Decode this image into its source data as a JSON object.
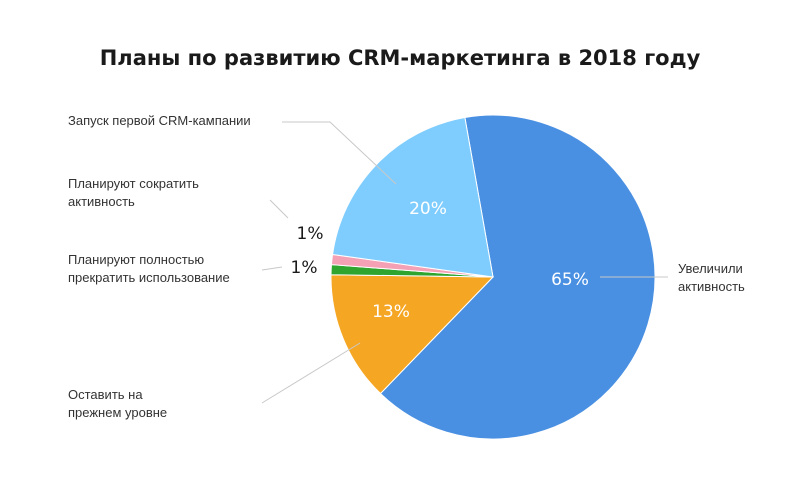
{
  "chart_data": {
    "type": "pie",
    "title": "Планы по развитию CRM-маркетинга в 2018 году",
    "slices": [
      {
        "lines": [
          "Увеличили",
          "активность"
        ],
        "value": 65,
        "label": "65%",
        "color": "#4a90e2"
      },
      {
        "lines": [
          "Оставить на",
          "прежнем уровне"
        ],
        "value": 13,
        "label": "13%",
        "color": "#f5a623"
      },
      {
        "lines": [
          "Планируют полностью",
          "прекратить использование"
        ],
        "value": 1,
        "label": "1%",
        "color": "#2fa52f"
      },
      {
        "lines": [
          "Планируют сократить",
          "активность"
        ],
        "value": 1,
        "label": "1%",
        "color": "#f4a0b5"
      },
      {
        "lines": [
          "Запуск первой CRM-кампании"
        ],
        "value": 20,
        "label": "20%",
        "color": "#7fcdff"
      }
    ]
  }
}
